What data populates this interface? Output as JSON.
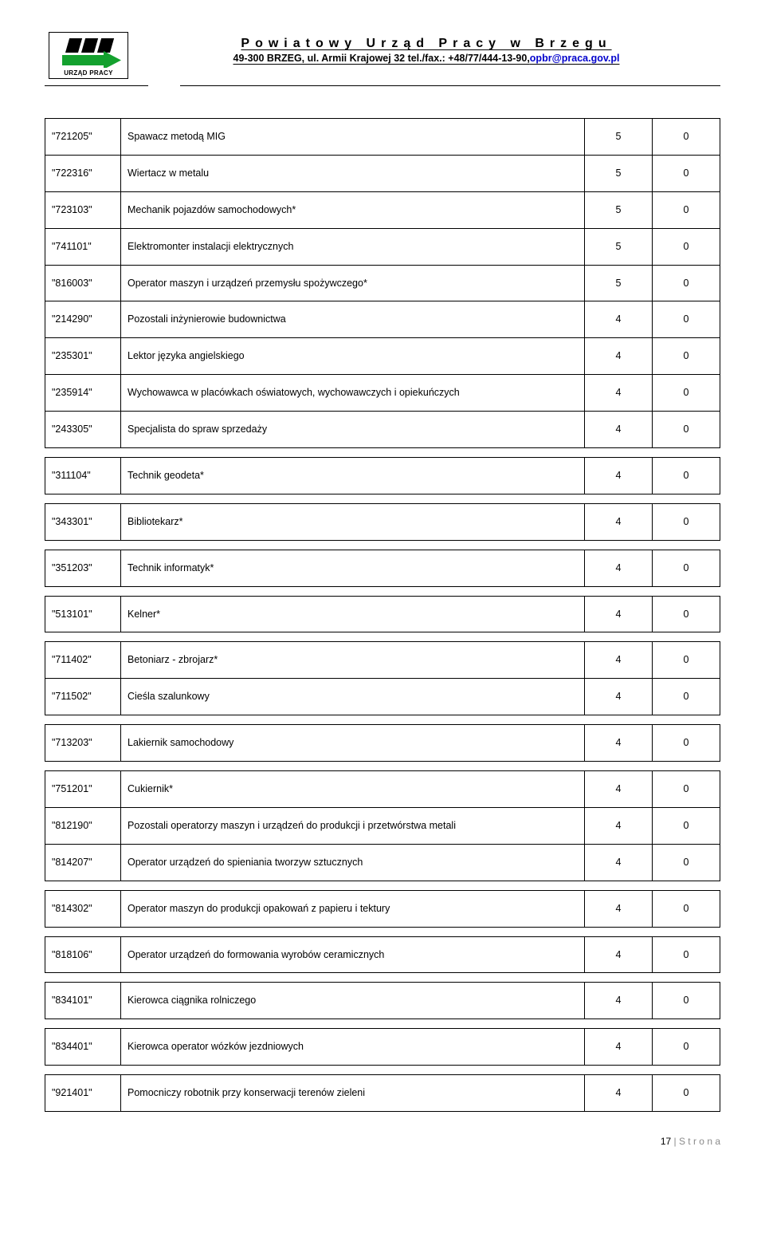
{
  "header": {
    "title": "Powiatowy Urząd Pracy w Brzegu",
    "subtitle_prefix": "49-300 BRZEG, ul. Armii Krajowej 32 tel./fax.: +48/77/444-13-90,",
    "email": "opbr@praca.gov.pl",
    "logo_caption": "URZĄD PRACY"
  },
  "groups": [
    {
      "rows": [
        {
          "code": "\"721205\"",
          "name": "Spawacz metodą MIG",
          "v1": "5",
          "v2": "0"
        },
        {
          "code": "\"722316\"",
          "name": "Wiertacz w metalu",
          "v1": "5",
          "v2": "0"
        },
        {
          "code": "\"723103\"",
          "name": "Mechanik pojazdów samochodowych*",
          "v1": "5",
          "v2": "0"
        },
        {
          "code": "\"741101\"",
          "name": "Elektromonter instalacji elektrycznych",
          "v1": "5",
          "v2": "0"
        },
        {
          "code": "\"816003\"",
          "name": "Operator maszyn i urządzeń przemysłu spożywczego*",
          "v1": "5",
          "v2": "0"
        },
        {
          "code": "\"214290\"",
          "name": "Pozostali inżynierowie budownictwa",
          "v1": "4",
          "v2": "0"
        },
        {
          "code": "\"235301\"",
          "name": "Lektor języka angielskiego",
          "v1": "4",
          "v2": "0"
        },
        {
          "code": "\"235914\"",
          "name": "Wychowawca w placówkach oświatowych, wychowawczych i opiekuńczych",
          "v1": "4",
          "v2": "0"
        },
        {
          "code": "\"243305\"",
          "name": "Specjalista do spraw sprzedaży",
          "v1": "4",
          "v2": "0"
        }
      ]
    },
    {
      "rows": [
        {
          "code": "\"311104\"",
          "name": "Technik geodeta*",
          "v1": "4",
          "v2": "0"
        }
      ]
    },
    {
      "rows": [
        {
          "code": "\"343301\"",
          "name": "Bibliotekarz*",
          "v1": "4",
          "v2": "0"
        }
      ]
    },
    {
      "rows": [
        {
          "code": "\"351203\"",
          "name": "Technik informatyk*",
          "v1": "4",
          "v2": "0"
        }
      ]
    },
    {
      "rows": [
        {
          "code": "\"513101\"",
          "name": "Kelner*",
          "v1": "4",
          "v2": "0"
        }
      ]
    },
    {
      "rows": [
        {
          "code": "\"711402\"",
          "name": "Betoniarz - zbrojarz*",
          "v1": "4",
          "v2": "0"
        },
        {
          "code": "\"711502\"",
          "name": "Cieśla szalunkowy",
          "v1": "4",
          "v2": "0"
        }
      ]
    },
    {
      "rows": [
        {
          "code": "\"713203\"",
          "name": "Lakiernik samochodowy",
          "v1": "4",
          "v2": "0"
        }
      ]
    },
    {
      "rows": [
        {
          "code": "\"751201\"",
          "name": "Cukiernik*",
          "v1": "4",
          "v2": "0"
        },
        {
          "code": "\"812190\"",
          "name": "Pozostali operatorzy maszyn i urządzeń do produkcji i przetwórstwa metali",
          "v1": "4",
          "v2": "0"
        },
        {
          "code": "\"814207\"",
          "name": "Operator urządzeń do spieniania tworzyw sztucznych",
          "v1": "4",
          "v2": "0"
        }
      ]
    },
    {
      "rows": [
        {
          "code": "\"814302\"",
          "name": "Operator maszyn do produkcji opakowań z papieru i tektury",
          "v1": "4",
          "v2": "0"
        }
      ]
    },
    {
      "rows": [
        {
          "code": "\"818106\"",
          "name": "Operator urządzeń do formowania wyrobów ceramicznych",
          "v1": "4",
          "v2": "0"
        }
      ]
    },
    {
      "rows": [
        {
          "code": "\"834101\"",
          "name": "Kierowca ciągnika rolniczego",
          "v1": "4",
          "v2": "0"
        }
      ]
    },
    {
      "rows": [
        {
          "code": "\"834401\"",
          "name": "Kierowca operator wózków jezdniowych",
          "v1": "4",
          "v2": "0"
        }
      ]
    },
    {
      "rows": [
        {
          "code": "\"921401\"",
          "name": "Pomocniczy robotnik przy konserwacji terenów zieleni",
          "v1": "4",
          "v2": "0"
        }
      ]
    }
  ],
  "footer": {
    "page_num": "17",
    "page_suffix": " | S t r o n a"
  },
  "colors": {
    "text": "#000000",
    "border": "#000000",
    "link": "#0000cc",
    "footer_gray": "#8a8a8a",
    "logo_green": "#14a12e",
    "logo_black": "#000000"
  }
}
